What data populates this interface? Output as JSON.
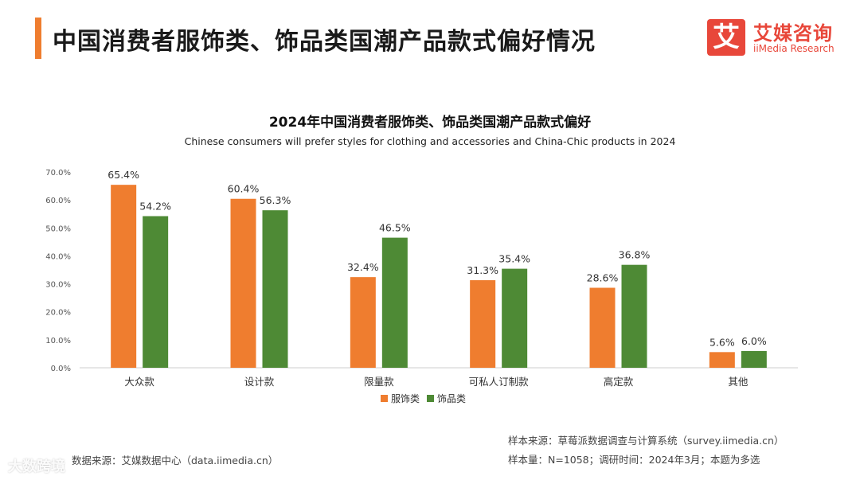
{
  "header": {
    "title": "中国消费者服饰类、饰品类国潮产品款式偏好情况",
    "logo_mark": "艾",
    "logo_cn": "艾媒咨询",
    "logo_en": "iiMedia Research"
  },
  "colors": {
    "accent": "#ef7d2f",
    "brand": "#e8473a",
    "series1": "#ef7d2f",
    "series2": "#4e8a35"
  },
  "chart_data": {
    "type": "bar",
    "title": "2024年中国消费者服饰类、饰品类国潮产品款式偏好",
    "subtitle": "Chinese consumers will prefer styles for clothing and accessories and China-Chic products in 2024",
    "categories": [
      "大众款",
      "设计款",
      "限量款",
      "可私人订制款",
      "高定款",
      "其他"
    ],
    "series": [
      {
        "name": "服饰类",
        "color": "#ef7d2f",
        "values": [
          65.4,
          60.4,
          32.4,
          31.3,
          28.6,
          5.6
        ]
      },
      {
        "name": "饰品类",
        "color": "#4e8a35",
        "values": [
          54.2,
          56.3,
          46.5,
          35.4,
          36.8,
          6.0
        ]
      }
    ],
    "ylim": [
      0,
      70
    ],
    "yticks": [
      0,
      10,
      20,
      30,
      40,
      50,
      60,
      70
    ],
    "y_unit": "%",
    "legend": "bottom-center",
    "grid": false
  },
  "footer": {
    "data_source": "数据来源：艾媒数据中心（data.iimedia.cn）",
    "sample_source": "样本来源：草莓派数据调查与计算系统（survey.iimedia.cn）",
    "sample_info": "样本量：N=1058；调研时间：2024年3月；本题为多选",
    "watermark": "大数跨境"
  }
}
